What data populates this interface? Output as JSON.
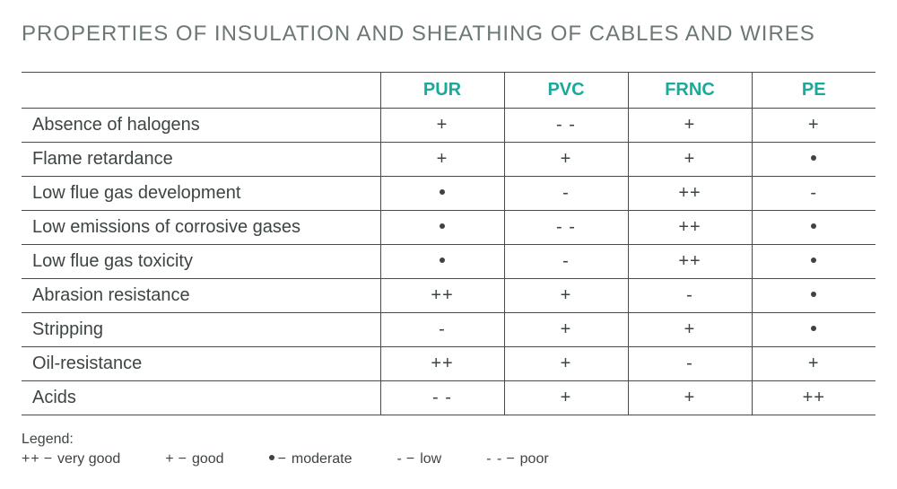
{
  "title": "PROPERTIES OF INSULATION AND SHEATHING OF CABLES AND WIRES",
  "colors": {
    "title": "#6b7876",
    "header": "#1aa99a",
    "border": "#4a4a4a",
    "text": "#3d4543",
    "background": "#ffffff"
  },
  "typography": {
    "title_fontsize": 24,
    "cell_fontsize": 20,
    "legend_fontsize": 16,
    "font_family": "Arial, Helvetica, sans-serif"
  },
  "table": {
    "column_widths": {
      "label": 400,
      "value": 138
    },
    "columns": [
      "PUR",
      "PVC",
      "FRNC",
      "PE"
    ],
    "rows": [
      {
        "label": "Absence of halogens",
        "values": [
          "+",
          "- -",
          "+",
          "+"
        ]
      },
      {
        "label": "Flame retardance",
        "values": [
          "+",
          "+",
          "+",
          "•"
        ]
      },
      {
        "label": "Low flue gas development",
        "values": [
          "•",
          "-",
          "++",
          "-"
        ]
      },
      {
        "label": "Low emissions of corrosive gases",
        "values": [
          "•",
          "- -",
          "++",
          "•"
        ]
      },
      {
        "label": "Low flue gas toxicity",
        "values": [
          "•",
          "-",
          "++",
          "•"
        ]
      },
      {
        "label": "Abrasion resistance",
        "values": [
          "++",
          "+",
          "-",
          "•"
        ]
      },
      {
        "label": "Stripping",
        "values": [
          "-",
          "+",
          "+",
          "•"
        ]
      },
      {
        "label": "Oil-resistance",
        "values": [
          "++",
          "+",
          "-",
          "+"
        ]
      },
      {
        "label": "Acids",
        "values": [
          "- -",
          "+",
          "+",
          "++"
        ]
      }
    ]
  },
  "legend": {
    "title": "Legend:",
    "items": [
      {
        "symbol": "++",
        "meaning": "very good"
      },
      {
        "symbol": "+",
        "meaning": "good"
      },
      {
        "symbol": "•",
        "meaning": "moderate"
      },
      {
        "symbol": "-",
        "meaning": "low"
      },
      {
        "symbol": "- -",
        "meaning": "poor"
      }
    ]
  }
}
